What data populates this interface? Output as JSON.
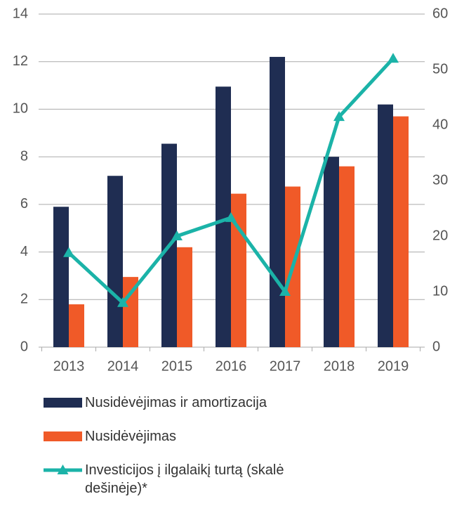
{
  "chart_data": {
    "type": "bar",
    "categories": [
      "2013",
      "2014",
      "2015",
      "2016",
      "2017",
      "2018",
      "2019"
    ],
    "series": [
      {
        "name": "Nusidėvėjimas ir amortizacija",
        "color": "#1f2d52",
        "values": [
          5.9,
          7.2,
          8.55,
          10.95,
          12.2,
          8.0,
          10.2
        ]
      },
      {
        "name": "Nusidėvėjimas",
        "color": "#f05a28",
        "values": [
          1.8,
          2.95,
          4.2,
          6.45,
          6.75,
          7.6,
          9.7
        ]
      },
      {
        "name": "Investicijos į ilgalaikį turtą (skalė dešinėje)*",
        "color": "#1bb3a8",
        "type": "line",
        "axis": "y2",
        "values": [
          17,
          8,
          20,
          23.3,
          10,
          41.5,
          52
        ]
      }
    ],
    "ylim": [
      0,
      14
    ],
    "yticks": [
      0,
      2,
      4,
      6,
      8,
      10,
      12,
      14
    ],
    "y2lim": [
      0,
      60
    ],
    "y2ticks": [
      0,
      10,
      20,
      30,
      40,
      50,
      60
    ],
    "grid": true
  }
}
